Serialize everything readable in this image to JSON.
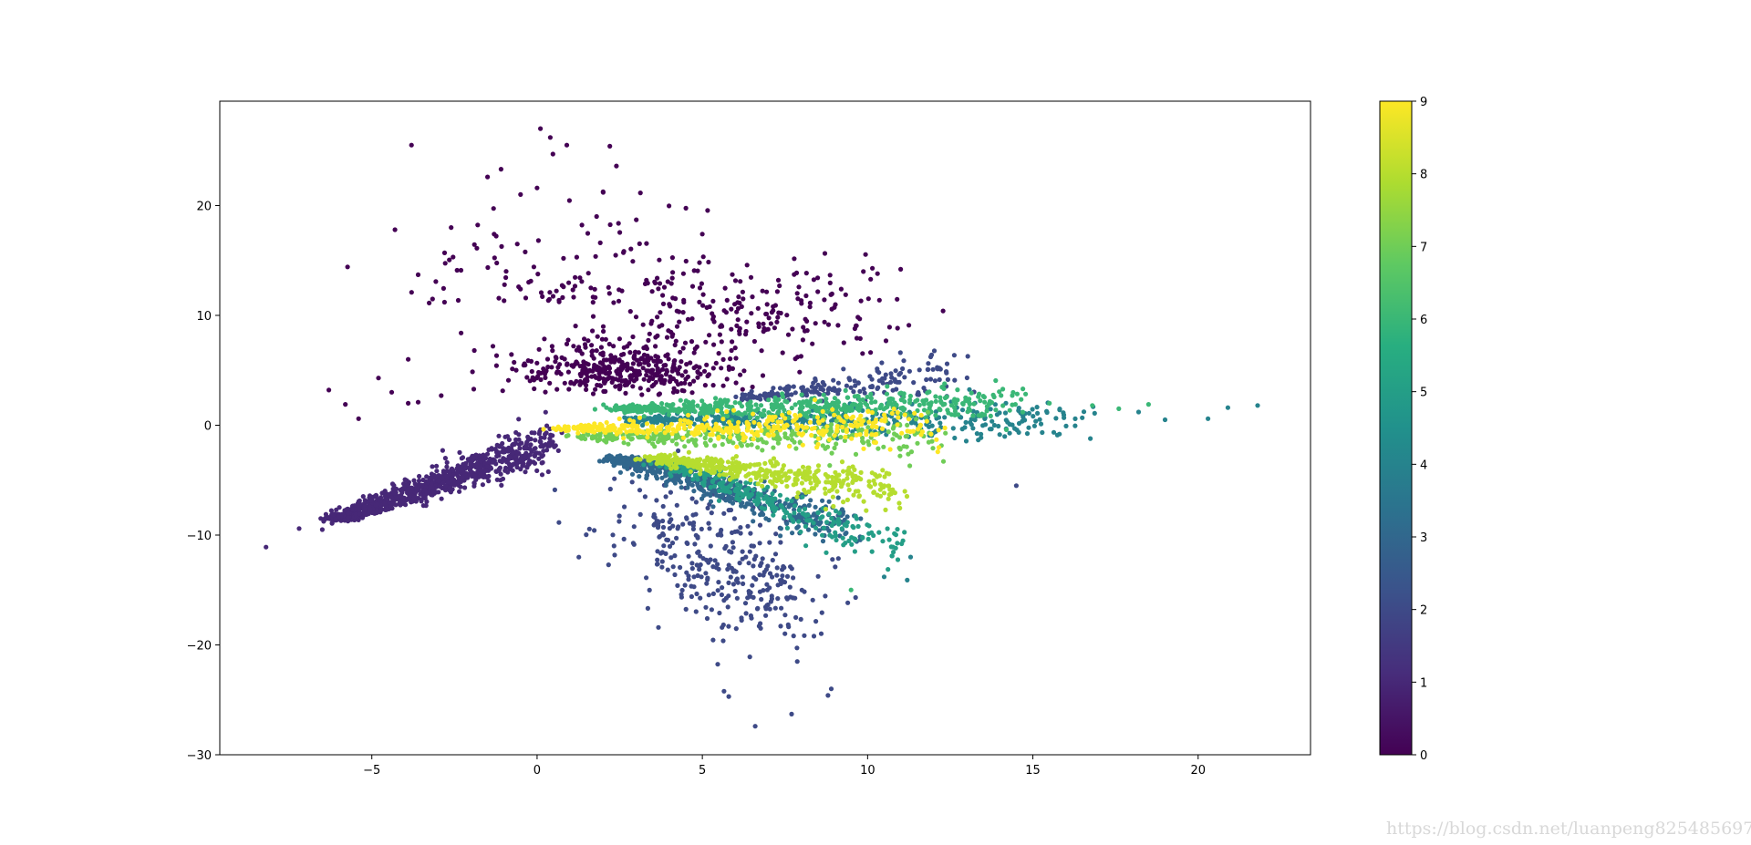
{
  "chart_data": {
    "type": "scatter",
    "title": "",
    "xlabel": "",
    "ylabel": "",
    "xlim": [
      -9.6,
      23.4
    ],
    "ylim": [
      -30.0,
      29.5
    ],
    "xticks": [
      -5,
      0,
      5,
      10,
      15,
      20
    ],
    "yticks": [
      -30,
      -20,
      -10,
      0,
      10,
      20
    ],
    "grid": false,
    "legend": "none",
    "colormap": "viridis",
    "colorbar": {
      "range": [
        0,
        9
      ],
      "ticks": [
        0,
        1,
        2,
        3,
        4,
        5,
        6,
        7,
        8,
        9
      ]
    },
    "colormap_stops": [
      "#440154",
      "#472d7b",
      "#3b528b",
      "#2c728e",
      "#21918c",
      "#28ae80",
      "#5ec962",
      "#addc30",
      "#fde725"
    ],
    "clusters": [
      {
        "label": 0,
        "note_center": [
          2.5,
          5.0
        ],
        "spread": [
          1.6,
          3.2
        ],
        "count": 700,
        "outliers": [
          [
            0.1,
            27.0
          ],
          [
            0.4,
            26.2
          ],
          [
            0.9,
            25.5
          ],
          [
            2.2,
            25.4
          ],
          [
            -3.8,
            25.5
          ],
          [
            2.4,
            23.6
          ],
          [
            -1.5,
            22.6
          ],
          [
            0.0,
            21.6
          ],
          [
            2.0,
            21.2
          ],
          [
            -0.5,
            21.0
          ],
          [
            1.8,
            19.0
          ],
          [
            -4.3,
            17.8
          ],
          [
            -2.6,
            18.0
          ],
          [
            3.0,
            18.7
          ],
          [
            -1.3,
            17.4
          ],
          [
            5.0,
            17.4
          ],
          [
            -0.6,
            16.5
          ],
          [
            1.2,
            15.3
          ],
          [
            -3.6,
            13.7
          ],
          [
            7.3,
            13.2
          ],
          [
            9.2,
            12.4
          ],
          [
            10.3,
            13.8
          ],
          [
            11.0,
            14.2
          ],
          [
            -2.8,
            11.2
          ],
          [
            -3.9,
            6.0
          ],
          [
            -6.3,
            3.2
          ],
          [
            -5.8,
            1.9
          ],
          [
            -5.4,
            0.6
          ],
          [
            -4.8,
            4.3
          ],
          [
            -4.4,
            3.0
          ],
          [
            -3.9,
            2.0
          ],
          [
            -3.6,
            2.1
          ],
          [
            -2.9,
            2.7
          ],
          [
            -2.3,
            8.4
          ],
          [
            -1.9,
            6.8
          ]
        ]
      },
      {
        "label": 1,
        "arm": {
          "from": [
            -6.0,
            -8.5
          ],
          "to": [
            0.4,
            -1.5
          ]
        },
        "count": 900,
        "outliers": [
          [
            -8.2,
            -11.1
          ],
          [
            -7.2,
            -9.4
          ],
          [
            -6.5,
            -9.5
          ],
          [
            -6.2,
            -8.9
          ]
        ]
      },
      {
        "label": 2,
        "fan": {
          "center": [
            5.0,
            -12.0
          ],
          "spread": [
            2.0,
            5.0
          ]
        },
        "count": 520,
        "arm": {
          "from": [
            6.5,
            2.5
          ],
          "to": [
            12.6,
            4.9
          ]
        },
        "outliers": [
          [
            6.6,
            -27.4
          ],
          [
            8.9,
            -24.0
          ],
          [
            8.8,
            -24.6
          ],
          [
            5.8,
            -24.7
          ],
          [
            7.7,
            -26.3
          ],
          [
            14.5,
            -5.5
          ]
        ]
      },
      {
        "label": 3,
        "arm": {
          "from": [
            2.5,
            -3.0
          ],
          "to": [
            9.5,
            -9.5
          ]
        },
        "count": 500
      },
      {
        "label": 4,
        "arm": {
          "from": [
            3.0,
            0.5
          ],
          "to": [
            16.5,
            0.3
          ]
        },
        "count": 420,
        "outliers": [
          [
            20.3,
            0.6
          ],
          [
            20.9,
            1.6
          ],
          [
            21.8,
            1.8
          ],
          [
            19.0,
            0.5
          ],
          [
            18.2,
            1.2
          ],
          [
            11.2,
            -14.1
          ],
          [
            10.5,
            -13.8
          ],
          [
            11.3,
            -12.0
          ]
        ]
      },
      {
        "label": 5,
        "arm": {
          "from": [
            4.0,
            -3.5
          ],
          "to": [
            11.0,
            -11.5
          ]
        },
        "count": 260
      },
      {
        "label": 6,
        "arm": {
          "from": [
            2.5,
            1.5
          ],
          "to": [
            14.5,
            2.0
          ]
        },
        "count": 520,
        "outliers": [
          [
            15.5,
            2.0
          ],
          [
            16.8,
            1.8
          ],
          [
            17.6,
            1.5
          ],
          [
            18.5,
            1.9
          ],
          [
            9.5,
            -15.0
          ]
        ]
      },
      {
        "label": 7,
        "arm": {
          "from": [
            1.5,
            -1.0
          ],
          "to": [
            12.0,
            -1.2
          ]
        },
        "count": 300
      },
      {
        "label": 8,
        "arm": {
          "from": [
            3.5,
            -3.0
          ],
          "to": [
            10.8,
            -6.0
          ]
        },
        "count": 420
      },
      {
        "label": 9,
        "arm": {
          "from": [
            1.0,
            -0.3
          ],
          "to": [
            12.0,
            -0.1
          ]
        },
        "count": 380
      }
    ]
  },
  "watermark": "https://blog.csdn.net/luanpeng825485697"
}
